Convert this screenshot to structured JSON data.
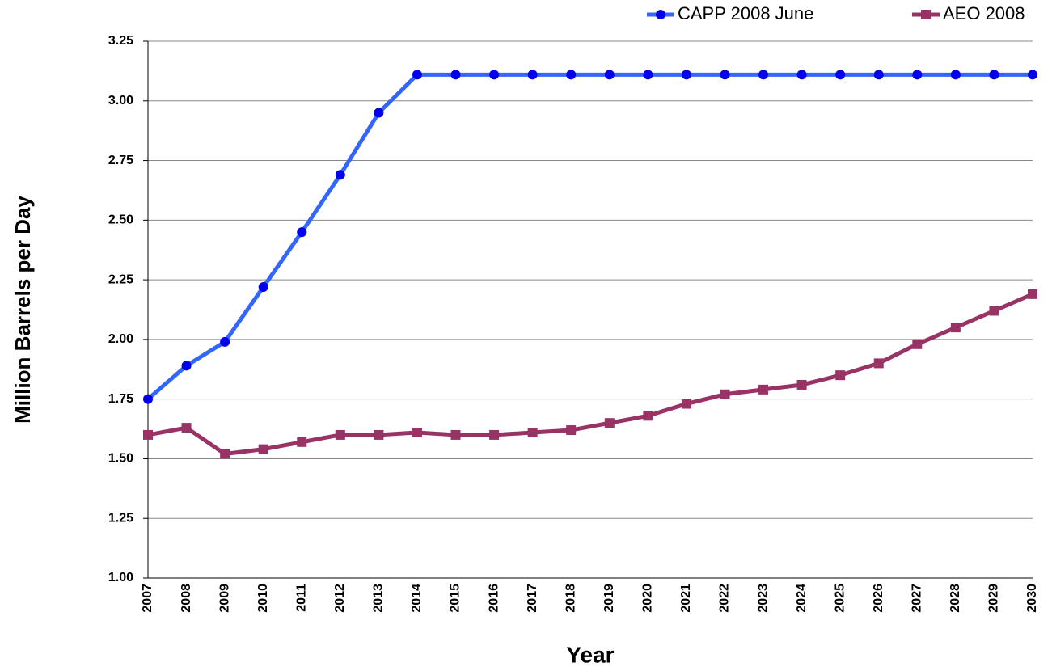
{
  "chart_data": {
    "type": "line",
    "x_label": "Year",
    "y_label": "Million Barrels per Day",
    "categories": [
      "2007",
      "2008",
      "2009",
      "2010",
      "2011",
      "2012",
      "2013",
      "2014",
      "2015",
      "2016",
      "2017",
      "2018",
      "2019",
      "2020",
      "2021",
      "2022",
      "2023",
      "2024",
      "2025",
      "2026",
      "2027",
      "2028",
      "2029",
      "2030"
    ],
    "series": [
      {
        "name": "CAPP 2008 June",
        "color": "#3366ff",
        "marker_color": "#0000ee",
        "marker": "circle",
        "values": [
          1.75,
          1.89,
          1.99,
          2.22,
          2.45,
          2.69,
          2.95,
          3.11,
          3.11,
          3.11,
          3.11,
          3.11,
          3.11,
          3.11,
          3.11,
          3.11,
          3.11,
          3.11,
          3.11,
          3.11,
          3.11,
          3.11,
          3.11,
          3.11
        ]
      },
      {
        "name": "AEO 2008",
        "color": "#993366",
        "marker_color": "#993366",
        "marker": "square",
        "values": [
          1.6,
          1.63,
          1.52,
          1.54,
          1.57,
          1.6,
          1.6,
          1.61,
          1.6,
          1.6,
          1.61,
          1.62,
          1.65,
          1.68,
          1.73,
          1.77,
          1.79,
          1.81,
          1.85,
          1.9,
          1.98,
          2.05,
          2.12,
          2.19
        ]
      }
    ],
    "ylim": [
      1,
      3.25
    ],
    "yticks": [
      {
        "value": 1,
        "label": "1.00"
      },
      {
        "value": 1.25,
        "label": "1.25"
      },
      {
        "value": 1.5,
        "label": "1.50"
      },
      {
        "value": 1.75,
        "label": "1.75"
      },
      {
        "value": 2,
        "label": "2.00"
      },
      {
        "value": 2.25,
        "label": "2.25"
      },
      {
        "value": 2.5,
        "label": "2.50"
      },
      {
        "value": 2.75,
        "label": "2.75"
      },
      {
        "value": 3,
        "label": "3.00"
      },
      {
        "value": 3.25,
        "label": "3.25"
      }
    ],
    "grid": true,
    "legend": "top-right"
  }
}
